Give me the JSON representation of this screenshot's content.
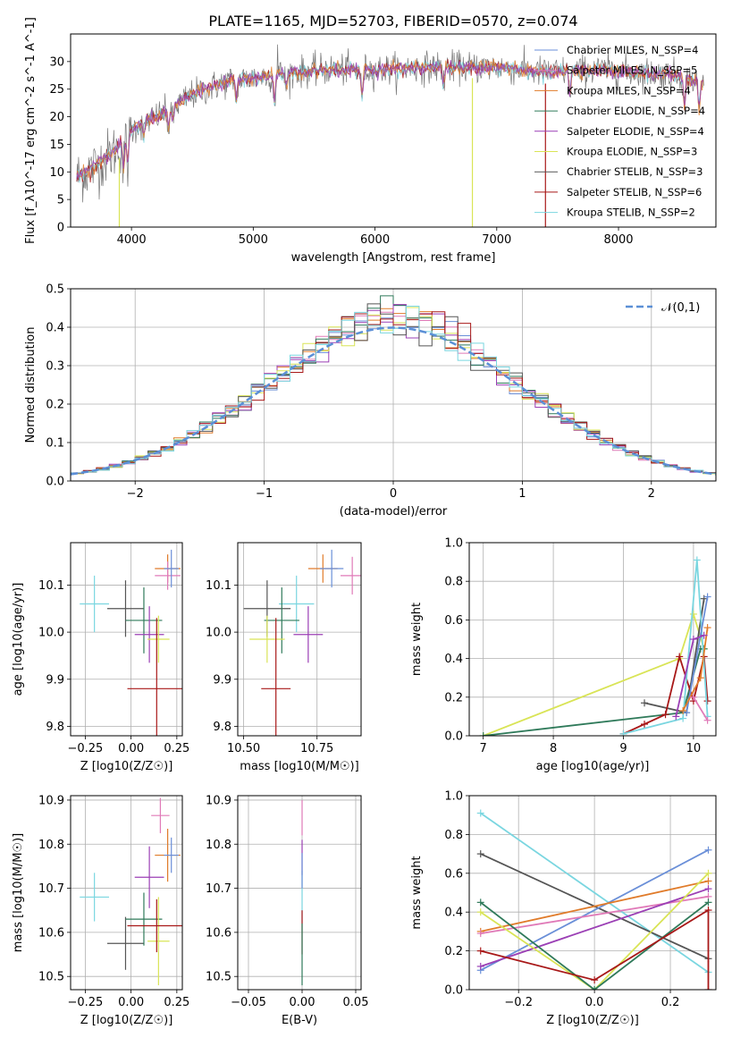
{
  "title": "PLATE=1165, MJD=52703, FIBERID=0570, z=0.074",
  "colors": {
    "c1": "#6a8fd8",
    "c2": "#e07b2a",
    "c3": "#2f7a5a",
    "c4": "#9b3fb5",
    "c5": "#d9e456",
    "c6": "#555555",
    "c7": "#a81818",
    "c8": "#7ad6e0",
    "c9": "#e07ab8"
  },
  "chart_data": [
    {
      "id": "spectrum",
      "type": "line",
      "xlabel": "wavelength [Angstrom, rest frame]",
      "ylabel": "Flux [f_λ10^-17 erg cm^-2 s^-1 A^-1]",
      "xlim": [
        3500,
        8800
      ],
      "ylim": [
        0,
        35
      ],
      "xticks": [
        4000,
        5000,
        6000,
        7000,
        8000
      ],
      "yticks": [
        0,
        5,
        10,
        15,
        20,
        25,
        30
      ],
      "legend_position": "upper-right",
      "legend": [
        {
          "label": "Chabrier MILES, N_SSP=4",
          "color": "c1"
        },
        {
          "label": "Salpeter MILES, N_SSP=5",
          "color": "c9"
        },
        {
          "label": "Kroupa MILES, N_SSP=4",
          "color": "c2"
        },
        {
          "label": "Chabrier ELODIE, N_SSP=4",
          "color": "c3"
        },
        {
          "label": "Salpeter ELODIE, N_SSP=4",
          "color": "c4"
        },
        {
          "label": "Kroupa ELODIE, N_SSP=3",
          "color": "c5"
        },
        {
          "label": "Chabrier STELIB, N_SSP=3",
          "color": "c6"
        },
        {
          "label": "Salpeter STELIB, N_SSP=6",
          "color": "c7"
        },
        {
          "label": "Kroupa STELIB, N_SSP=2",
          "color": "c8"
        }
      ],
      "continuum": [
        [
          3550,
          9
        ],
        [
          3700,
          11
        ],
        [
          3900,
          14.5
        ],
        [
          4000,
          17.5
        ],
        [
          4100,
          19
        ],
        [
          4300,
          21
        ],
        [
          4500,
          24
        ],
        [
          4800,
          26.5
        ],
        [
          5000,
          27
        ],
        [
          5300,
          28
        ],
        [
          5600,
          28.5
        ],
        [
          6000,
          28.5
        ],
        [
          6500,
          29
        ],
        [
          7000,
          29
        ],
        [
          7400,
          28
        ],
        [
          7800,
          28.5
        ],
        [
          8200,
          28
        ],
        [
          8500,
          27.5
        ],
        [
          8700,
          26
        ]
      ],
      "absorptions": [
        [
          3934,
          5
        ],
        [
          3969,
          5
        ],
        [
          4101,
          2.5
        ],
        [
          4304,
          3.5
        ],
        [
          4340,
          2.5
        ],
        [
          4861,
          3.5
        ],
        [
          5175,
          5
        ],
        [
          5270,
          2.5
        ],
        [
          5893,
          5
        ],
        [
          6563,
          3
        ],
        [
          7600,
          4.5
        ],
        [
          8542,
          5.5
        ],
        [
          8662,
          4.5
        ]
      ],
      "spikes": [
        [
          5200,
          5.5
        ],
        [
          6563,
          1.5
        ]
      ],
      "drops": [
        {
          "x": 3900,
          "color": "c5"
        },
        {
          "x": 6800,
          "color": "c5"
        },
        {
          "x": 7400,
          "color": "c7"
        }
      ]
    },
    {
      "id": "residuals",
      "type": "step",
      "xlabel": "(data-model)/error",
      "ylabel": "Normed distribution",
      "xlim": [
        -2.5,
        2.5
      ],
      "ylim": [
        0,
        0.5
      ],
      "xticks": [
        -2,
        -1,
        0,
        1,
        2
      ],
      "yticks": [
        0.0,
        0.1,
        0.2,
        0.3,
        0.4,
        0.5
      ],
      "grid": true,
      "normal_label": "𝒩(0,1)",
      "normal_color": "#5b8fd6",
      "bin_width": 0.1,
      "series_colors": [
        "c1",
        "c9",
        "c2",
        "c3",
        "c4",
        "c5",
        "c6",
        "c7",
        "c8"
      ]
    },
    {
      "id": "z-age",
      "type": "errorbar",
      "xlabel": "Z [log10(Z/Z☉)]",
      "ylabel": "age [log10(age/yr)]",
      "xlim": [
        -0.33,
        0.28
      ],
      "ylim": [
        9.78,
        10.19
      ],
      "xticks": [
        -0.25,
        0.0,
        0.25
      ],
      "yticks": [
        9.8,
        9.9,
        10.0,
        10.1
      ],
      "grid": true,
      "points": [
        {
          "x": -0.2,
          "y": 10.06,
          "xe": 0.08,
          "ye": 0.06,
          "c": "c8"
        },
        {
          "x": -0.03,
          "y": 10.05,
          "xe": 0.1,
          "ye": 0.06,
          "c": "c6"
        },
        {
          "x": 0.07,
          "y": 10.025,
          "xe": 0.1,
          "ye": 0.07,
          "c": "c3"
        },
        {
          "x": 0.1,
          "y": 9.995,
          "xe": 0.08,
          "ye": 0.06,
          "c": "c4"
        },
        {
          "x": 0.15,
          "y": 9.985,
          "xe": 0.06,
          "ye": 0.05,
          "c": "c5"
        },
        {
          "x": 0.14,
          "y": 9.88,
          "xe": 0.16,
          "ye": 0.15,
          "c": "c7"
        },
        {
          "x": 0.2,
          "y": 10.135,
          "xe": 0.07,
          "ye": 0.03,
          "c": "c2"
        },
        {
          "x": 0.2,
          "y": 10.12,
          "xe": 0.07,
          "ye": 0.03,
          "c": "c9"
        },
        {
          "x": 0.22,
          "y": 10.135,
          "xe": 0.04,
          "ye": 0.04,
          "c": "c1"
        }
      ]
    },
    {
      "id": "mass-age",
      "type": "errorbar",
      "xlabel": "mass [log10(M/M☉)]",
      "ylabel": "",
      "xlim": [
        10.48,
        10.9
      ],
      "ylim": [
        9.78,
        10.19
      ],
      "xticks": [
        10.5,
        10.75
      ],
      "yticks": [
        9.8,
        9.9,
        10.0,
        10.1
      ],
      "grid": true,
      "points": [
        {
          "x": 10.68,
          "y": 10.06,
          "xe": 0.06,
          "ye": 0.06,
          "c": "c8"
        },
        {
          "x": 10.58,
          "y": 10.05,
          "xe": 0.08,
          "ye": 0.06,
          "c": "c6"
        },
        {
          "x": 10.63,
          "y": 10.025,
          "xe": 0.06,
          "ye": 0.07,
          "c": "c3"
        },
        {
          "x": 10.72,
          "y": 9.995,
          "xe": 0.05,
          "ye": 0.06,
          "c": "c4"
        },
        {
          "x": 10.58,
          "y": 9.985,
          "xe": 0.06,
          "ye": 0.05,
          "c": "c5"
        },
        {
          "x": 10.61,
          "y": 9.88,
          "xe": 0.05,
          "ye": 0.15,
          "c": "c7"
        },
        {
          "x": 10.77,
          "y": 10.135,
          "xe": 0.05,
          "ye": 0.03,
          "c": "c2"
        },
        {
          "x": 10.87,
          "y": 10.12,
          "xe": 0.04,
          "ye": 0.04,
          "c": "c9"
        },
        {
          "x": 10.8,
          "y": 10.135,
          "xe": 0.04,
          "ye": 0.04,
          "c": "c1"
        }
      ]
    },
    {
      "id": "weight-age",
      "type": "line",
      "xlabel": "age [log10(age/yr)]",
      "ylabel": "mass weight",
      "xlim": [
        6.8,
        10.32
      ],
      "ylim": [
        0,
        1.0
      ],
      "xticks": [
        7,
        8,
        9,
        10
      ],
      "yticks": [
        0.0,
        0.2,
        0.4,
        0.6,
        0.8,
        1.0
      ],
      "grid": true,
      "series": [
        {
          "c": "c5",
          "pts": [
            [
              7.0,
              0.0
            ],
            [
              9.8,
              0.4
            ],
            [
              10.0,
              0.63
            ],
            [
              10.15,
              0.45
            ]
          ]
        },
        {
          "c": "c3",
          "pts": [
            [
              7.0,
              0.0
            ],
            [
              9.85,
              0.12
            ],
            [
              10.1,
              0.45
            ],
            [
              10.15,
              0.45
            ]
          ]
        },
        {
          "c": "c6",
          "pts": [
            [
              9.3,
              0.17
            ],
            [
              9.9,
              0.12
            ],
            [
              10.15,
              0.71
            ]
          ]
        },
        {
          "c": "c7",
          "pts": [
            [
              9.0,
              0.01
            ],
            [
              9.3,
              0.06
            ],
            [
              9.6,
              0.11
            ],
            [
              9.8,
              0.41
            ],
            [
              10.0,
              0.18
            ],
            [
              10.15,
              0.41
            ],
            [
              10.2,
              0.18
            ]
          ]
        },
        {
          "c": "c8",
          "pts": [
            [
              9.0,
              0.01
            ],
            [
              9.85,
              0.09
            ],
            [
              10.05,
              0.91
            ],
            [
              10.2,
              0.1
            ]
          ]
        },
        {
          "c": "c1",
          "pts": [
            [
              9.9,
              0.12
            ],
            [
              10.2,
              0.72
            ]
          ]
        },
        {
          "c": "c2",
          "pts": [
            [
              9.85,
              0.13
            ],
            [
              10.1,
              0.3
            ],
            [
              10.2,
              0.56
            ]
          ]
        },
        {
          "c": "c4",
          "pts": [
            [
              9.75,
              0.1
            ],
            [
              10.0,
              0.5
            ],
            [
              10.15,
              0.52
            ]
          ]
        },
        {
          "c": "c9",
          "pts": [
            [
              10.0,
              0.2
            ],
            [
              10.2,
              0.08
            ]
          ]
        }
      ]
    },
    {
      "id": "z-mass",
      "type": "errorbar",
      "xlabel": "Z [log10(Z/Z☉)]",
      "ylabel": "mass [log10(M/M☉)]",
      "xlim": [
        -0.33,
        0.28
      ],
      "ylim": [
        10.47,
        10.91
      ],
      "xticks": [
        -0.25,
        0.0,
        0.25
      ],
      "yticks": [
        10.5,
        10.6,
        10.7,
        10.8,
        10.9
      ],
      "grid": true,
      "points": [
        {
          "x": -0.2,
          "y": 10.68,
          "xe": 0.08,
          "ye": 0.055,
          "c": "c8"
        },
        {
          "x": -0.03,
          "y": 10.575,
          "xe": 0.1,
          "ye": 0.06,
          "c": "c6"
        },
        {
          "x": 0.07,
          "y": 10.63,
          "xe": 0.1,
          "ye": 0.06,
          "c": "c3"
        },
        {
          "x": 0.1,
          "y": 10.725,
          "xe": 0.08,
          "ye": 0.07,
          "c": "c4"
        },
        {
          "x": 0.15,
          "y": 10.58,
          "xe": 0.06,
          "ye": 0.1,
          "c": "c5"
        },
        {
          "x": 0.14,
          "y": 10.615,
          "xe": 0.16,
          "ye": 0.06,
          "c": "c7"
        },
        {
          "x": 0.2,
          "y": 10.775,
          "xe": 0.07,
          "ye": 0.06,
          "c": "c2"
        },
        {
          "x": 0.16,
          "y": 10.865,
          "xe": 0.05,
          "ye": 0.04,
          "c": "c9"
        },
        {
          "x": 0.22,
          "y": 10.775,
          "xe": 0.04,
          "ye": 0.04,
          "c": "c1"
        }
      ]
    },
    {
      "id": "ebv-mass",
      "type": "errorbar",
      "xlabel": "E(B-V)",
      "ylabel": "",
      "xlim": [
        -0.06,
        0.055
      ],
      "ylim": [
        10.47,
        10.91
      ],
      "xticks": [
        -0.05,
        0.0,
        0.05
      ],
      "yticks": [
        10.5,
        10.6,
        10.7,
        10.8,
        10.9
      ],
      "grid": true,
      "points": [
        {
          "x": 0.0,
          "y": 10.86,
          "xe": 0,
          "ye": 0.04,
          "c": "c9"
        },
        {
          "x": 0.0,
          "y": 10.77,
          "xe": 0,
          "ye": 0.04,
          "c": "c4"
        },
        {
          "x": 0.0,
          "y": 10.68,
          "xe": 0,
          "ye": 0.06,
          "c": "c8"
        },
        {
          "x": 0.0,
          "y": 10.6,
          "xe": 0,
          "ye": 0.05,
          "c": "c7"
        },
        {
          "x": 0.0,
          "y": 10.55,
          "xe": 0,
          "ye": 0.07,
          "c": "c3"
        },
        {
          "x": 0.0,
          "y": 10.74,
          "xe": 0,
          "ye": 0.04,
          "c": "c1"
        }
      ]
    },
    {
      "id": "weight-z",
      "type": "line",
      "xlabel": "Z [log10(Z/Z☉)]",
      "ylabel": "mass weight",
      "xlim": [
        -0.33,
        0.32
      ],
      "ylim": [
        0,
        1.0
      ],
      "xticks": [
        -0.2,
        0.0,
        0.2
      ],
      "yticks": [
        0.0,
        0.2,
        0.4,
        0.6,
        0.8,
        1.0
      ],
      "grid": true,
      "series": [
        {
          "c": "c8",
          "pts": [
            [
              -0.3,
              0.91
            ],
            [
              0.3,
              0.09
            ]
          ]
        },
        {
          "c": "c6",
          "pts": [
            [
              -0.3,
              0.7
            ],
            [
              0.3,
              0.16
            ]
          ]
        },
        {
          "c": "c1",
          "pts": [
            [
              -0.3,
              0.1
            ],
            [
              0.3,
              0.72
            ]
          ]
        },
        {
          "c": "c2",
          "pts": [
            [
              -0.3,
              0.3
            ],
            [
              0.3,
              0.56
            ]
          ]
        },
        {
          "c": "c9",
          "pts": [
            [
              -0.3,
              0.29
            ],
            [
              0.3,
              0.48
            ]
          ]
        },
        {
          "c": "c4",
          "pts": [
            [
              -0.3,
              0.12
            ],
            [
              0.3,
              0.52
            ]
          ]
        },
        {
          "c": "c5",
          "pts": [
            [
              -0.3,
              0.4
            ],
            [
              0.0,
              0.0
            ],
            [
              0.3,
              0.6
            ]
          ]
        },
        {
          "c": "c3",
          "pts": [
            [
              -0.3,
              0.45
            ],
            [
              0.0,
              0.0
            ],
            [
              0.3,
              0.45
            ]
          ]
        },
        {
          "c": "c7",
          "pts": [
            [
              -0.3,
              0.2
            ],
            [
              0.0,
              0.05
            ],
            [
              0.3,
              0.41
            ],
            [
              0.3,
              0.0
            ]
          ]
        }
      ]
    }
  ]
}
